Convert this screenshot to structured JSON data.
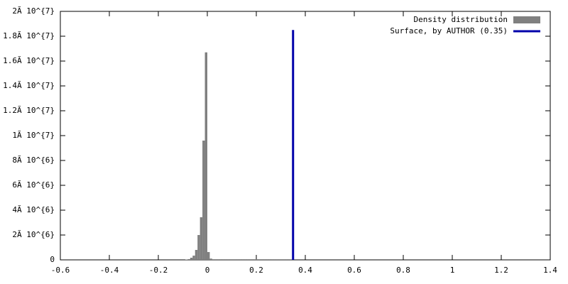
{
  "chart_data": {
    "type": "histogram",
    "name": "Density distribution",
    "color": "#808080",
    "bins": [
      -0.09,
      -0.08,
      -0.07,
      -0.06,
      -0.05,
      -0.04,
      -0.03,
      -0.02,
      -0.01,
      0,
      0.01,
      0.02,
      0.03,
      0.04,
      0.05,
      0.06,
      0.07,
      0.08,
      0.09,
      0.1,
      0.11,
      0.12,
      0.13,
      0.14,
      0.15,
      0.16,
      0.17,
      0.18,
      0.19,
      0.2,
      0.21,
      0.22,
      0.23,
      0.24,
      0.25,
      0.26,
      0.27,
      0.28,
      0.29,
      0.3,
      0.31,
      0.32,
      0.33,
      0.34,
      0.35
    ],
    "counts": [
      30000,
      60000,
      170000,
      340000,
      800000,
      2000000,
      3430000,
      9600000,
      16700000,
      630000,
      100000,
      50000,
      50000,
      50000,
      50000,
      50000,
      50000,
      50000,
      50000,
      50000,
      50000,
      50000,
      50000,
      50000,
      50000,
      50000,
      50000,
      50000,
      50000,
      50000,
      50000,
      50000,
      50000,
      50000,
      50000,
      50000,
      50000,
      50000,
      50000,
      50000,
      50000,
      50000,
      50000,
      50000
    ],
    "lines": [
      {
        "name": "Surface, by AUTHOR (0.35)",
        "color": "#0000aa",
        "x": [
          0.35,
          0.35
        ],
        "y": [
          0,
          18500000
        ]
      }
    ],
    "xlim": [
      -0.6,
      1.4
    ],
    "xticks": [
      -0.6,
      -0.4,
      -0.2,
      0,
      0.2,
      0.4,
      0.6,
      0.8,
      1,
      1.2,
      1.4
    ],
    "ylim": [
      0,
      20000000
    ],
    "yticks": [
      0,
      {
        "value": 2000000,
        "label": "2Ã 10^{6}"
      },
      {
        "value": 4000000,
        "label": "4Ã 10^{6}"
      },
      {
        "value": 6000000,
        "label": "6Ã 10^{6}"
      },
      {
        "value": 8000000,
        "label": "8Ã 10^{6}"
      },
      {
        "value": 10000000,
        "label": "1Ã 10^{7}"
      },
      {
        "value": 12000000,
        "label": "1.2Ã 10^{7}"
      },
      {
        "value": 14000000,
        "label": "1.4Ã 10^{7}"
      },
      {
        "value": 16000000,
        "label": "1.6Ã 10^{7}"
      },
      {
        "value": 18000000,
        "label": "1.8Ã 10^{7}"
      },
      {
        "value": 20000000,
        "label": "2Ã 10^{7}"
      }
    ],
    "legend": "top right"
  }
}
